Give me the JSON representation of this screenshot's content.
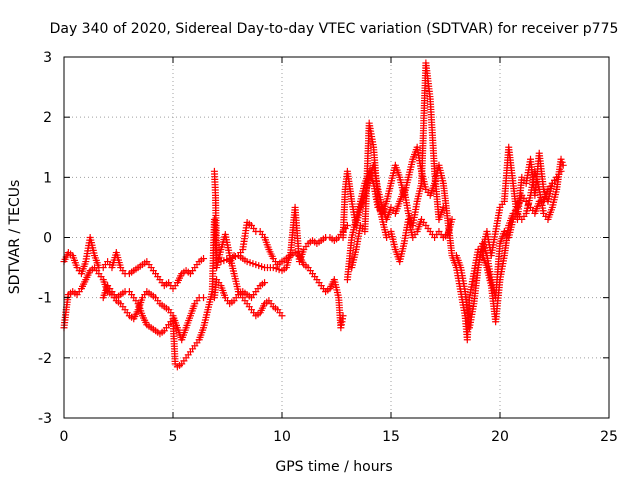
{
  "chart_data": {
    "type": "scatter",
    "title": "Day 340 of 2020, Sidereal Day-to-day VTEC variation (SDTVAR) for receiver p775",
    "xlabel": "GPS time / hours",
    "ylabel": "SDTVAR / TECUs",
    "xlim": [
      0,
      25
    ],
    "ylim": [
      -3,
      3
    ],
    "xticks": [
      "0",
      "5",
      "10",
      "15",
      "20",
      "25"
    ],
    "yticks": [
      "3",
      "2",
      "1",
      "0",
      "-1",
      "-2",
      "-3"
    ],
    "xtick_values": [
      0,
      5,
      10,
      15,
      20,
      25
    ],
    "ytick_values": [
      3,
      2,
      1,
      0,
      -1,
      -2,
      -3
    ],
    "grid": true,
    "marker": "+",
    "color": "#ff0000",
    "series": [
      {
        "name": "p775",
        "points": [
          [
            0.0,
            -0.4
          ],
          [
            0.2,
            -0.25
          ],
          [
            0.4,
            -0.3
          ],
          [
            0.6,
            -0.5
          ],
          [
            0.8,
            -0.6
          ],
          [
            1.0,
            -0.4
          ],
          [
            1.2,
            0.0
          ],
          [
            1.4,
            -0.3
          ],
          [
            1.6,
            -0.5
          ],
          [
            1.8,
            -0.5
          ],
          [
            2.0,
            -0.4
          ],
          [
            2.2,
            -0.5
          ],
          [
            2.4,
            -0.25
          ],
          [
            2.6,
            -0.5
          ],
          [
            2.8,
            -0.6
          ],
          [
            3.0,
            -0.6
          ],
          [
            3.2,
            -0.55
          ],
          [
            3.4,
            -0.5
          ],
          [
            3.6,
            -0.45
          ],
          [
            3.8,
            -0.4
          ],
          [
            4.0,
            -0.5
          ],
          [
            4.2,
            -0.6
          ],
          [
            4.4,
            -0.7
          ],
          [
            4.6,
            -0.8
          ],
          [
            4.8,
            -0.75
          ],
          [
            5.0,
            -0.85
          ],
          [
            5.2,
            -0.75
          ],
          [
            5.4,
            -0.6
          ],
          [
            5.6,
            -0.55
          ],
          [
            5.8,
            -0.6
          ],
          [
            6.0,
            -0.5
          ],
          [
            6.2,
            -0.4
          ],
          [
            6.4,
            -0.35
          ],
          [
            0.0,
            -1.5
          ],
          [
            0.1,
            -1.2
          ],
          [
            0.2,
            -0.95
          ],
          [
            0.4,
            -0.9
          ],
          [
            0.6,
            -0.95
          ],
          [
            0.8,
            -0.85
          ],
          [
            1.0,
            -0.7
          ],
          [
            1.2,
            -0.55
          ],
          [
            1.4,
            -0.5
          ],
          [
            1.6,
            -0.6
          ],
          [
            1.8,
            -0.7
          ],
          [
            2.0,
            -0.9
          ],
          [
            2.2,
            -0.95
          ],
          [
            2.4,
            -1.05
          ],
          [
            2.6,
            -1.1
          ],
          [
            2.8,
            -1.2
          ],
          [
            3.0,
            -1.3
          ],
          [
            3.2,
            -1.35
          ],
          [
            3.4,
            -1.2
          ],
          [
            3.6,
            -1.0
          ],
          [
            3.8,
            -0.9
          ],
          [
            4.0,
            -0.95
          ],
          [
            4.2,
            -1.0
          ],
          [
            4.4,
            -1.1
          ],
          [
            4.6,
            -1.15
          ],
          [
            4.8,
            -1.2
          ],
          [
            5.0,
            -1.3
          ],
          [
            5.2,
            -1.5
          ],
          [
            5.4,
            -1.7
          ],
          [
            5.6,
            -1.5
          ],
          [
            5.8,
            -1.3
          ],
          [
            6.0,
            -1.1
          ],
          [
            6.2,
            -1.0
          ],
          [
            6.4,
            -1.0
          ],
          [
            1.8,
            -1.0
          ],
          [
            2.0,
            -0.8
          ],
          [
            2.2,
            -0.9
          ],
          [
            2.4,
            -1.0
          ],
          [
            2.6,
            -0.95
          ],
          [
            2.8,
            -0.9
          ],
          [
            3.0,
            -0.9
          ],
          [
            3.2,
            -1.0
          ],
          [
            3.4,
            -1.1
          ],
          [
            3.6,
            -1.3
          ],
          [
            3.8,
            -1.45
          ],
          [
            4.0,
            -1.5
          ],
          [
            4.2,
            -1.55
          ],
          [
            4.4,
            -1.6
          ],
          [
            4.6,
            -1.55
          ],
          [
            4.8,
            -1.45
          ],
          [
            5.0,
            -1.35
          ],
          [
            5.1,
            -2.1
          ],
          [
            5.2,
            -2.15
          ],
          [
            5.4,
            -2.1
          ],
          [
            5.6,
            -2.0
          ],
          [
            5.8,
            -1.9
          ],
          [
            6.0,
            -1.8
          ],
          [
            6.2,
            -1.7
          ],
          [
            6.4,
            -1.5
          ],
          [
            6.8,
            -0.9
          ],
          [
            6.9,
            0.3
          ],
          [
            7.0,
            -0.5
          ],
          [
            7.2,
            -0.2
          ],
          [
            7.4,
            0.05
          ],
          [
            7.6,
            -0.3
          ],
          [
            7.8,
            -0.6
          ],
          [
            8.0,
            -0.9
          ],
          [
            8.2,
            -1.0
          ],
          [
            8.4,
            -1.1
          ],
          [
            8.6,
            -1.2
          ],
          [
            8.8,
            -1.3
          ],
          [
            9.0,
            -1.25
          ],
          [
            9.2,
            -1.1
          ],
          [
            9.4,
            -1.05
          ],
          [
            9.6,
            -1.15
          ],
          [
            9.8,
            -1.2
          ],
          [
            10.0,
            -1.3
          ],
          [
            6.9,
            -1.0
          ],
          [
            7.0,
            -0.7
          ],
          [
            7.2,
            -0.8
          ],
          [
            7.4,
            -1.0
          ],
          [
            7.6,
            -1.1
          ],
          [
            7.8,
            -1.05
          ],
          [
            8.0,
            -0.95
          ],
          [
            8.2,
            -0.9
          ],
          [
            8.4,
            -0.95
          ],
          [
            8.6,
            -1.0
          ],
          [
            8.8,
            -0.9
          ],
          [
            9.0,
            -0.8
          ],
          [
            9.2,
            -0.75
          ],
          [
            6.9,
            1.1
          ],
          [
            6.95,
            0.7
          ],
          [
            7.0,
            -0.3
          ],
          [
            7.2,
            -0.4
          ],
          [
            7.6,
            -0.35
          ],
          [
            8.0,
            -0.3
          ],
          [
            8.2,
            -0.2
          ],
          [
            8.4,
            0.25
          ],
          [
            8.6,
            0.2
          ],
          [
            8.8,
            0.1
          ],
          [
            9.0,
            0.1
          ],
          [
            9.2,
            0.0
          ],
          [
            9.4,
            -0.2
          ],
          [
            9.6,
            -0.35
          ],
          [
            9.8,
            -0.45
          ],
          [
            10.0,
            -0.4
          ],
          [
            10.2,
            -0.35
          ],
          [
            10.4,
            -0.3
          ],
          [
            10.6,
            -0.25
          ],
          [
            10.8,
            -0.3
          ],
          [
            11.0,
            -0.45
          ],
          [
            11.2,
            -0.5
          ],
          [
            11.4,
            -0.6
          ],
          [
            11.6,
            -0.7
          ],
          [
            11.8,
            -0.8
          ],
          [
            12.0,
            -0.9
          ],
          [
            12.2,
            -0.85
          ],
          [
            12.4,
            -0.7
          ],
          [
            12.6,
            -1.0
          ],
          [
            12.7,
            -1.5
          ],
          [
            12.8,
            -1.3
          ],
          [
            7.6,
            -0.4
          ],
          [
            7.8,
            -0.3
          ],
          [
            8.0,
            -0.3
          ],
          [
            8.4,
            -0.4
          ],
          [
            8.8,
            -0.45
          ],
          [
            9.2,
            -0.5
          ],
          [
            9.6,
            -0.5
          ],
          [
            10.0,
            -0.55
          ],
          [
            10.2,
            -0.5
          ],
          [
            10.4,
            -0.25
          ],
          [
            10.6,
            0.5
          ],
          [
            10.8,
            -0.4
          ],
          [
            11.0,
            -0.2
          ],
          [
            11.2,
            -0.1
          ],
          [
            11.4,
            -0.05
          ],
          [
            11.6,
            -0.1
          ],
          [
            11.8,
            -0.05
          ],
          [
            12.0,
            0.0
          ],
          [
            12.2,
            0.0
          ],
          [
            12.4,
            -0.05
          ],
          [
            12.6,
            0.0
          ],
          [
            12.8,
            0.1
          ],
          [
            13.0,
            0.2
          ],
          [
            12.8,
            0.0
          ],
          [
            12.9,
            0.8
          ],
          [
            13.0,
            1.1
          ],
          [
            13.2,
            0.6
          ],
          [
            13.4,
            0.2
          ],
          [
            13.6,
            0.5
          ],
          [
            13.8,
            0.7
          ],
          [
            14.0,
            1.0
          ],
          [
            14.2,
            1.2
          ],
          [
            14.4,
            0.8
          ],
          [
            14.6,
            0.5
          ],
          [
            14.8,
            0.3
          ],
          [
            15.0,
            0.5
          ],
          [
            15.2,
            0.4
          ],
          [
            15.4,
            0.6
          ],
          [
            15.6,
            0.8
          ],
          [
            15.8,
            0.4
          ],
          [
            16.0,
            0.2
          ],
          [
            16.2,
            0.6
          ],
          [
            16.4,
            0.9
          ],
          [
            16.6,
            2.9
          ],
          [
            16.8,
            2.3
          ],
          [
            17.0,
            1.1
          ],
          [
            17.2,
            0.3
          ],
          [
            17.4,
            0.5
          ],
          [
            13.2,
            -0.5
          ],
          [
            13.4,
            -0.2
          ],
          [
            13.6,
            0.2
          ],
          [
            13.8,
            0.1
          ],
          [
            14.0,
            1.9
          ],
          [
            14.2,
            1.5
          ],
          [
            14.4,
            0.6
          ],
          [
            14.6,
            0.3
          ],
          [
            14.8,
            0.0
          ],
          [
            15.0,
            0.1
          ],
          [
            15.2,
            -0.2
          ],
          [
            15.4,
            -0.4
          ],
          [
            15.6,
            -0.1
          ],
          [
            15.8,
            0.3
          ],
          [
            16.0,
            0.0
          ],
          [
            16.2,
            0.1
          ],
          [
            16.4,
            0.3
          ],
          [
            16.6,
            0.2
          ],
          [
            16.8,
            0.1
          ],
          [
            17.0,
            0.0
          ],
          [
            17.2,
            0.1
          ],
          [
            17.4,
            0.0
          ],
          [
            17.6,
            0.05
          ],
          [
            17.8,
            0.3
          ],
          [
            13.0,
            -0.7
          ],
          [
            13.2,
            0.0
          ],
          [
            13.4,
            0.3
          ],
          [
            13.6,
            0.6
          ],
          [
            13.8,
            0.9
          ],
          [
            14.0,
            1.1
          ],
          [
            14.2,
            0.9
          ],
          [
            14.4,
            0.5
          ],
          [
            14.6,
            0.4
          ],
          [
            14.8,
            0.6
          ],
          [
            15.0,
            0.9
          ],
          [
            15.2,
            1.2
          ],
          [
            15.4,
            1.0
          ],
          [
            15.6,
            0.7
          ],
          [
            15.8,
            1.0
          ],
          [
            16.0,
            1.3
          ],
          [
            16.2,
            1.5
          ],
          [
            16.4,
            1.1
          ],
          [
            16.6,
            0.8
          ],
          [
            16.8,
            0.7
          ],
          [
            17.0,
            0.9
          ],
          [
            17.2,
            1.2
          ],
          [
            17.4,
            0.9
          ],
          [
            17.8,
            -0.3
          ],
          [
            18.0,
            -0.5
          ],
          [
            18.2,
            -0.9
          ],
          [
            18.4,
            -1.3
          ],
          [
            18.5,
            -1.7
          ],
          [
            18.6,
            -1.0
          ],
          [
            18.8,
            -0.6
          ],
          [
            19.0,
            -0.2
          ],
          [
            19.2,
            -0.3
          ],
          [
            19.4,
            -0.5
          ],
          [
            19.6,
            -0.8
          ],
          [
            19.8,
            -1.4
          ],
          [
            20.0,
            -0.7
          ],
          [
            20.2,
            -0.3
          ],
          [
            20.4,
            0.2
          ],
          [
            20.6,
            0.4
          ],
          [
            20.8,
            0.5
          ],
          [
            21.0,
            0.7
          ],
          [
            21.2,
            0.6
          ],
          [
            21.4,
            0.5
          ],
          [
            21.6,
            0.4
          ],
          [
            21.8,
            0.6
          ],
          [
            22.0,
            0.6
          ],
          [
            22.2,
            0.8
          ],
          [
            22.4,
            0.9
          ],
          [
            22.6,
            1.0
          ],
          [
            22.8,
            1.1
          ],
          [
            18.0,
            -0.3
          ],
          [
            18.2,
            -0.5
          ],
          [
            18.4,
            -0.9
          ],
          [
            18.6,
            -1.5
          ],
          [
            18.8,
            -1.1
          ],
          [
            19.0,
            -0.5
          ],
          [
            19.2,
            -0.1
          ],
          [
            19.4,
            -0.3
          ],
          [
            19.6,
            -0.7
          ],
          [
            19.8,
            -1.0
          ],
          [
            20.0,
            -0.1
          ],
          [
            20.2,
            0.1
          ],
          [
            20.4,
            0.0
          ],
          [
            20.6,
            0.3
          ],
          [
            20.8,
            0.4
          ],
          [
            21.0,
            0.3
          ],
          [
            21.2,
            0.4
          ],
          [
            21.4,
            0.7
          ],
          [
            21.6,
            1.1
          ],
          [
            21.8,
            0.8
          ],
          [
            22.0,
            0.4
          ],
          [
            22.2,
            0.3
          ],
          [
            22.4,
            0.5
          ],
          [
            22.6,
            0.8
          ],
          [
            22.8,
            1.3
          ],
          [
            22.9,
            1.2
          ],
          [
            19.2,
            -0.2
          ],
          [
            19.4,
            0.1
          ],
          [
            19.6,
            -0.3
          ],
          [
            19.8,
            0.1
          ],
          [
            20.0,
            0.5
          ],
          [
            20.2,
            0.6
          ],
          [
            20.4,
            1.5
          ],
          [
            20.6,
            0.9
          ],
          [
            20.8,
            0.3
          ],
          [
            21.0,
            1.0
          ],
          [
            21.2,
            0.9
          ],
          [
            21.4,
            1.3
          ],
          [
            21.6,
            0.7
          ],
          [
            21.8,
            1.4
          ],
          [
            22.0,
            0.8
          ],
          [
            22.2,
            0.6
          ],
          [
            22.4,
            0.9
          ],
          [
            22.6,
            1.0
          ]
        ]
      }
    ]
  }
}
